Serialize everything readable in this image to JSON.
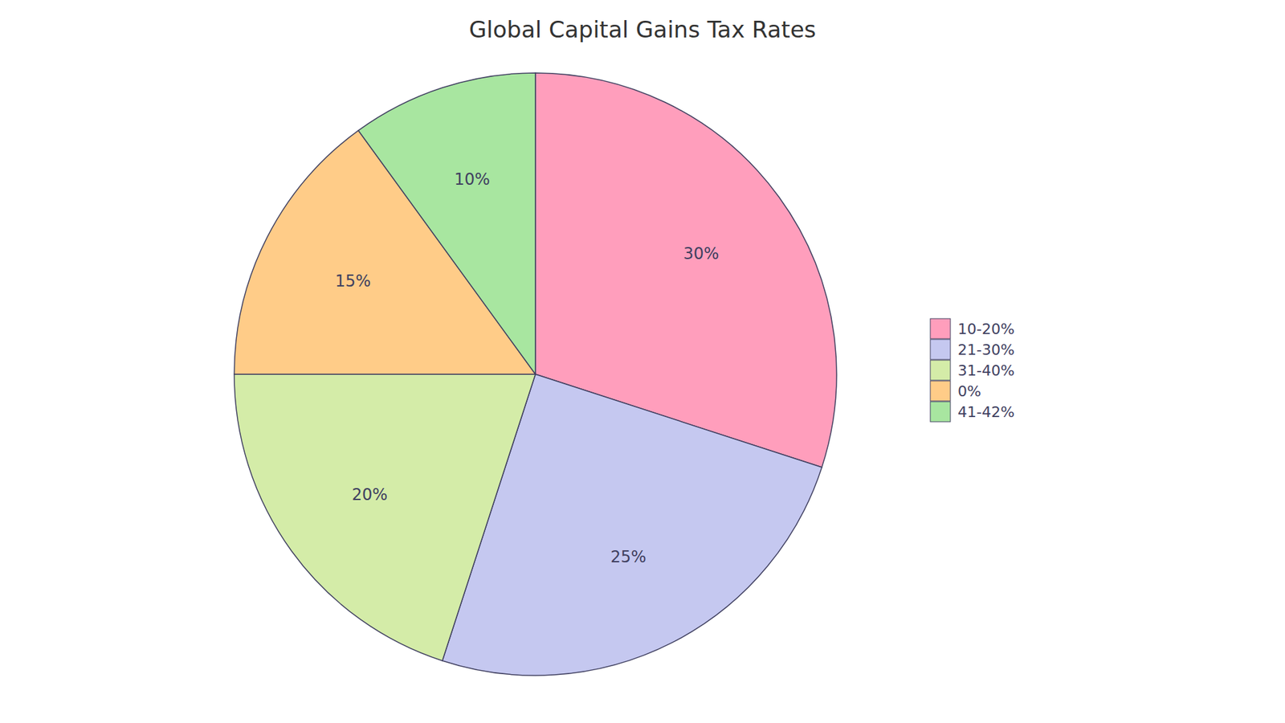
{
  "chart_data": {
    "type": "pie",
    "title": "Global Capital Gains Tax Rates",
    "categories": [
      "10-20%",
      "21-30%",
      "31-40%",
      "0%",
      "41-42%"
    ],
    "values": [
      30,
      25,
      20,
      15,
      10
    ],
    "value_labels": [
      "30%",
      "25%",
      "20%",
      "15%",
      "10%"
    ],
    "colors": [
      "#FF9EBC",
      "#C5C8F0",
      "#D4ECA8",
      "#FFCC88",
      "#A8E6A0"
    ],
    "data_labels": true,
    "legend": "right"
  }
}
